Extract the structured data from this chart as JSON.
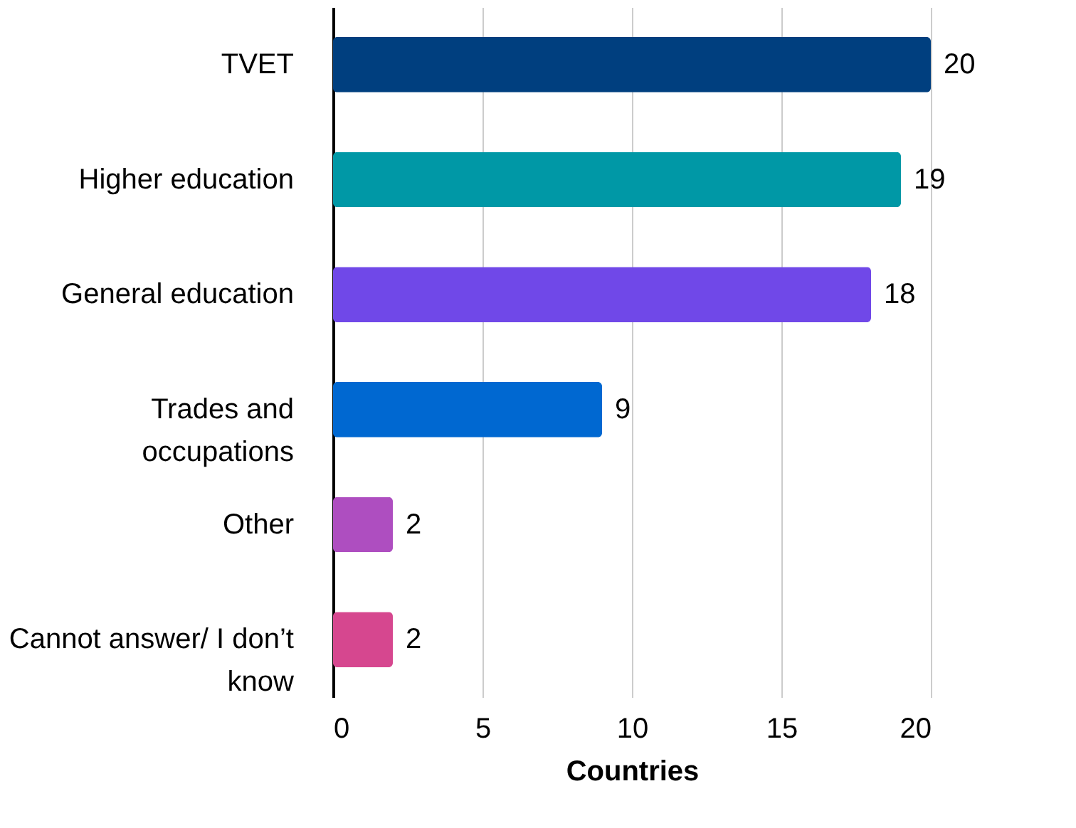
{
  "chart_data": {
    "type": "bar",
    "orientation": "horizontal",
    "xlabel": "Countries",
    "categories": [
      "TVET",
      "Higher education",
      "General education",
      "Trades and occupations",
      "Other",
      "Cannot answer/ I don’t know"
    ],
    "values": [
      20,
      19,
      18,
      9,
      2,
      2
    ],
    "colors": [
      "#003f7f",
      "#0098a6",
      "#7048e8",
      "#0068d1",
      "#ae4ec0",
      "#d6478f"
    ],
    "xlim": [
      0,
      20
    ],
    "xticks": [
      0,
      5,
      10,
      15,
      20
    ],
    "grid": "x",
    "data_labels": true
  }
}
